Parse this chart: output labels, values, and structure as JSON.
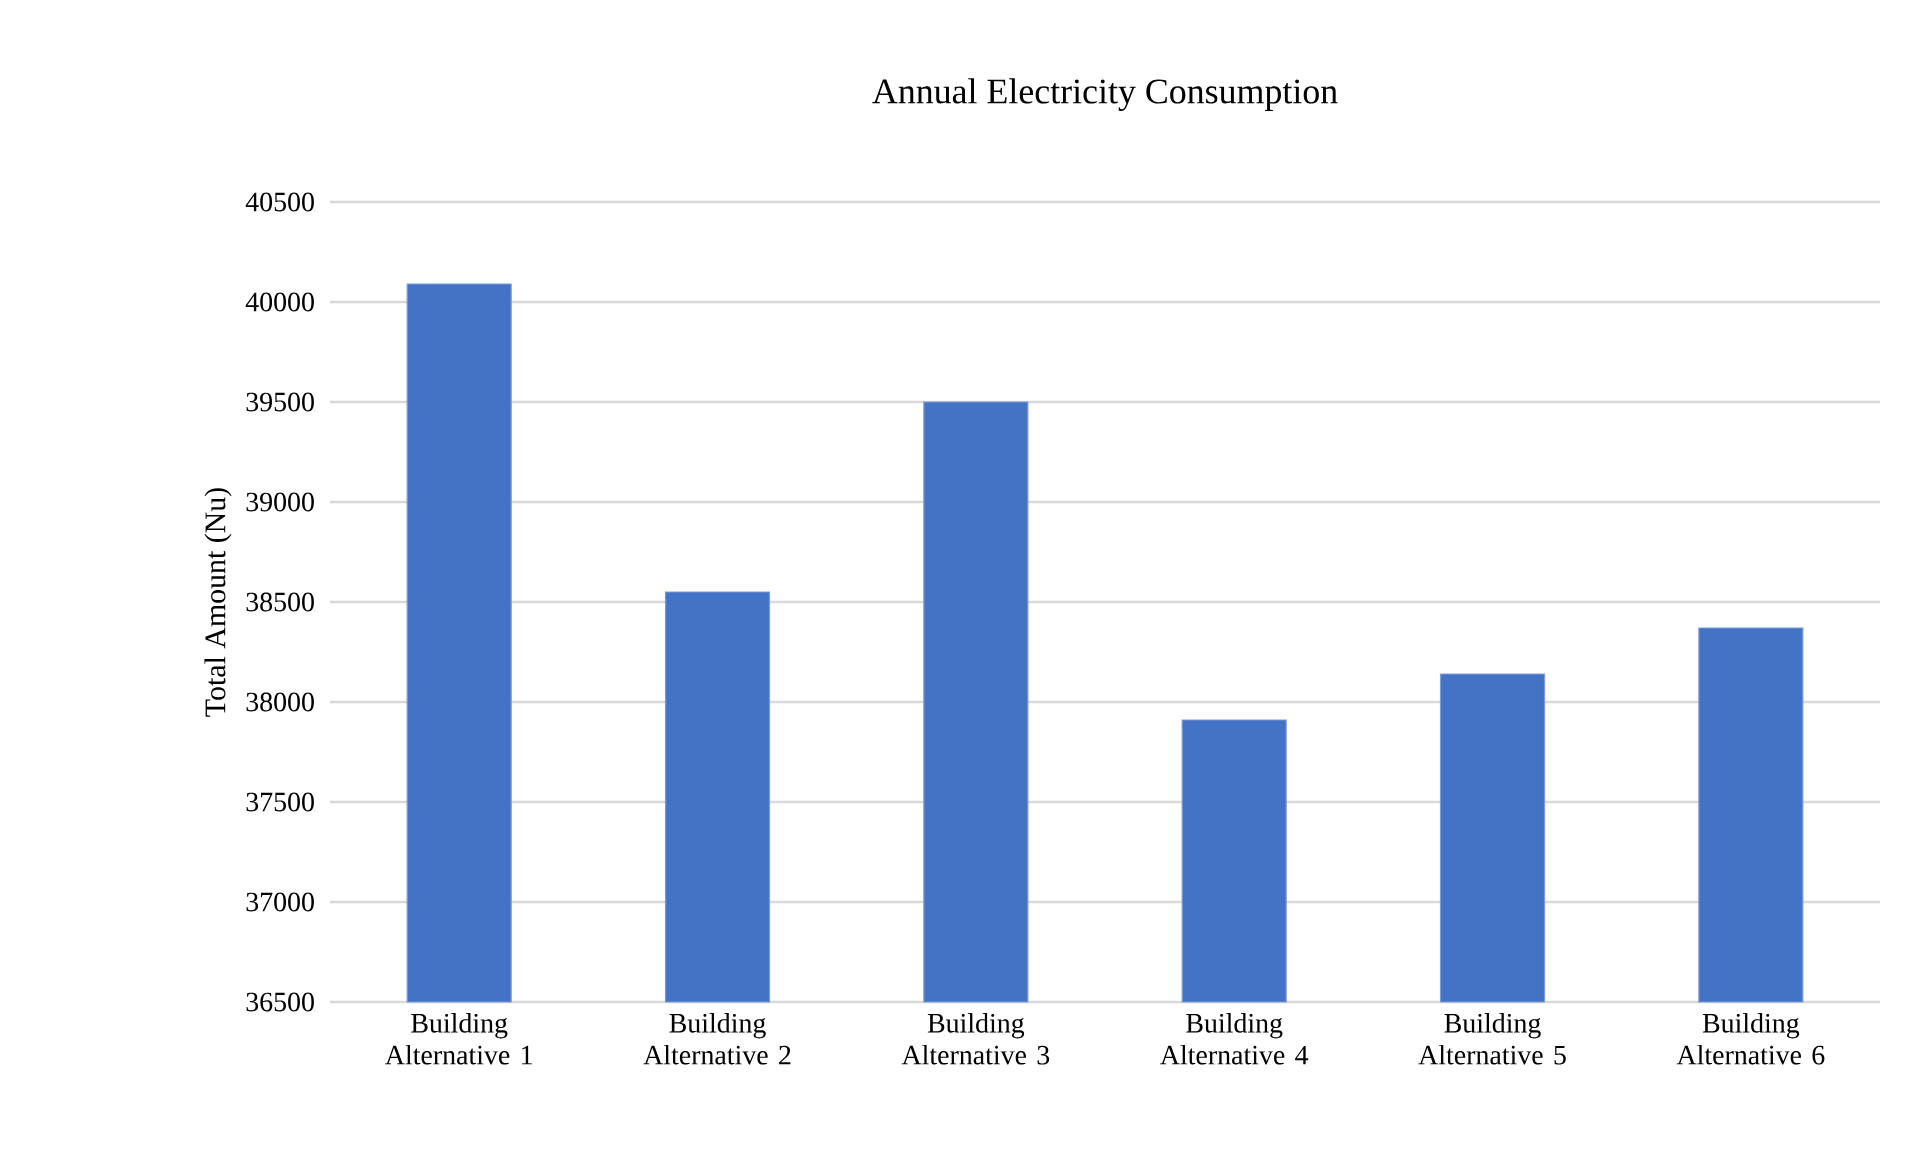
{
  "chart_data": {
    "type": "bar",
    "title": "Annual Electricity  Consumption",
    "ylabel": "Total Amount (Nu)",
    "categories": [
      "Building Alternative 1",
      "Building Alternative 2",
      "Building Alternative 3",
      "Building Alternative 4",
      "Building Alternative 5",
      "Building Alternative 6"
    ],
    "values": [
      40090,
      38550,
      39500,
      37910,
      38140,
      38370
    ],
    "color": "#4472c4",
    "ylim": [
      36500,
      40500
    ],
    "yticks": [
      36500,
      37000,
      37500,
      38000,
      38500,
      39000,
      39500,
      40000,
      40500
    ],
    "grid": "y"
  }
}
